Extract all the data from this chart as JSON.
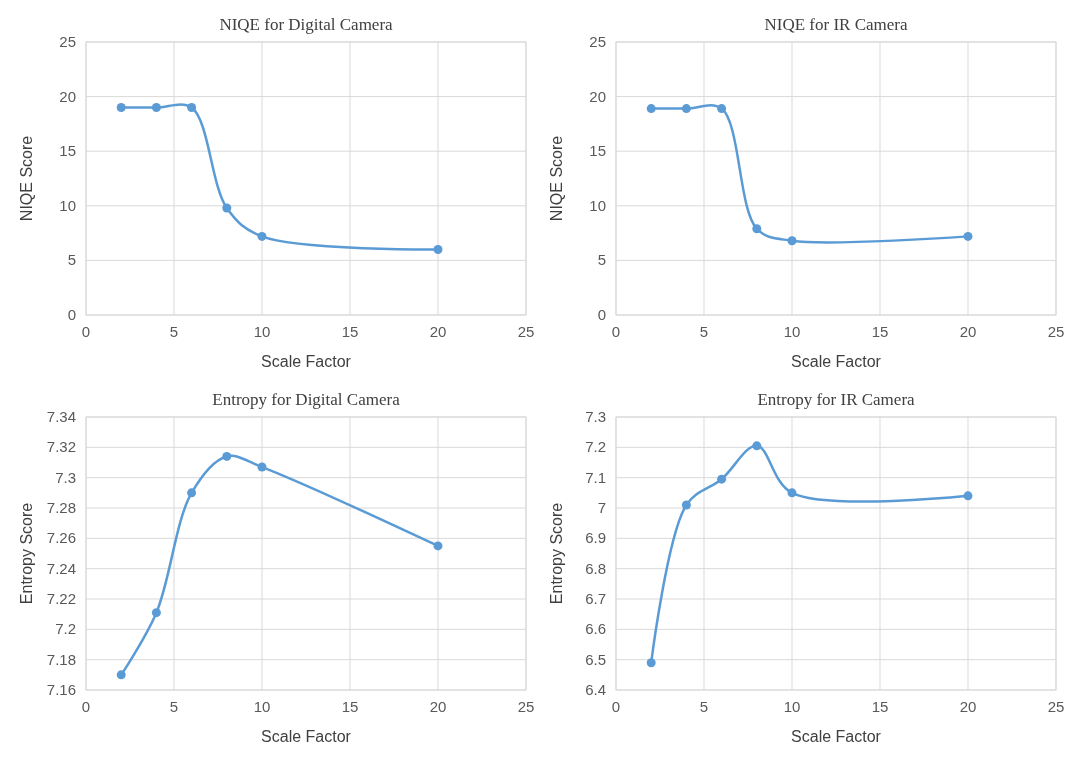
{
  "chart_data": [
    {
      "type": "line",
      "title": "NIQE for Digital Camera",
      "xlabel": "Scale Factor",
      "ylabel": "NIQE Score",
      "x": [
        2,
        4,
        6,
        8,
        10,
        20
      ],
      "series": [
        {
          "color": "#5b9bd5",
          "values": [
            19,
            19,
            19,
            9.8,
            7.2,
            6
          ]
        }
      ],
      "xlim": [
        0,
        25
      ],
      "xticks": [
        0,
        5,
        10,
        15,
        20,
        25
      ],
      "ylim": [
        0,
        25
      ],
      "yticks": [
        0,
        5,
        10,
        15,
        20,
        25
      ],
      "grid": true,
      "marker": "circle"
    },
    {
      "type": "line",
      "title": "NIQE for IR Camera",
      "xlabel": "Scale Factor",
      "ylabel": "NIQE Score",
      "x": [
        2,
        4,
        6,
        8,
        10,
        20
      ],
      "series": [
        {
          "color": "#5b9bd5",
          "values": [
            18.9,
            18.9,
            18.9,
            7.9,
            6.8,
            7.2
          ]
        }
      ],
      "xlim": [
        0,
        25
      ],
      "xticks": [
        0,
        5,
        10,
        15,
        20,
        25
      ],
      "ylim": [
        0,
        25
      ],
      "yticks": [
        0,
        5,
        10,
        15,
        20,
        25
      ],
      "grid": true,
      "marker": "circle"
    },
    {
      "type": "line",
      "title": "Entropy for Digital Camera",
      "xlabel": "Scale Factor",
      "ylabel": "Entropy Score",
      "x": [
        2,
        4,
        6,
        8,
        10,
        20
      ],
      "series": [
        {
          "color": "#5b9bd5",
          "values": [
            7.17,
            7.211,
            7.29,
            7.314,
            7.307,
            7.255
          ]
        }
      ],
      "xlim": [
        0,
        25
      ],
      "xticks": [
        0,
        5,
        10,
        15,
        20,
        25
      ],
      "ylim": [
        7.16,
        7.34
      ],
      "yticks": [
        7.16,
        7.18,
        7.2,
        7.22,
        7.24,
        7.26,
        7.28,
        7.3,
        7.32,
        7.34
      ],
      "grid": true,
      "marker": "circle"
    },
    {
      "type": "line",
      "title": "Entropy for IR Camera",
      "xlabel": "Scale Factor",
      "ylabel": "Entropy Score",
      "x": [
        2,
        4,
        6,
        8,
        10,
        20
      ],
      "series": [
        {
          "color": "#5b9bd5",
          "values": [
            6.49,
            7.01,
            7.095,
            7.205,
            7.05,
            7.04
          ]
        }
      ],
      "xlim": [
        0,
        25
      ],
      "xticks": [
        0,
        5,
        10,
        15,
        20,
        25
      ],
      "ylim": [
        6.4,
        7.3
      ],
      "yticks": [
        6.4,
        6.5,
        6.6,
        6.7,
        6.8,
        6.9,
        7,
        7.1,
        7.2,
        7.3
      ],
      "grid": true,
      "marker": "circle"
    }
  ]
}
